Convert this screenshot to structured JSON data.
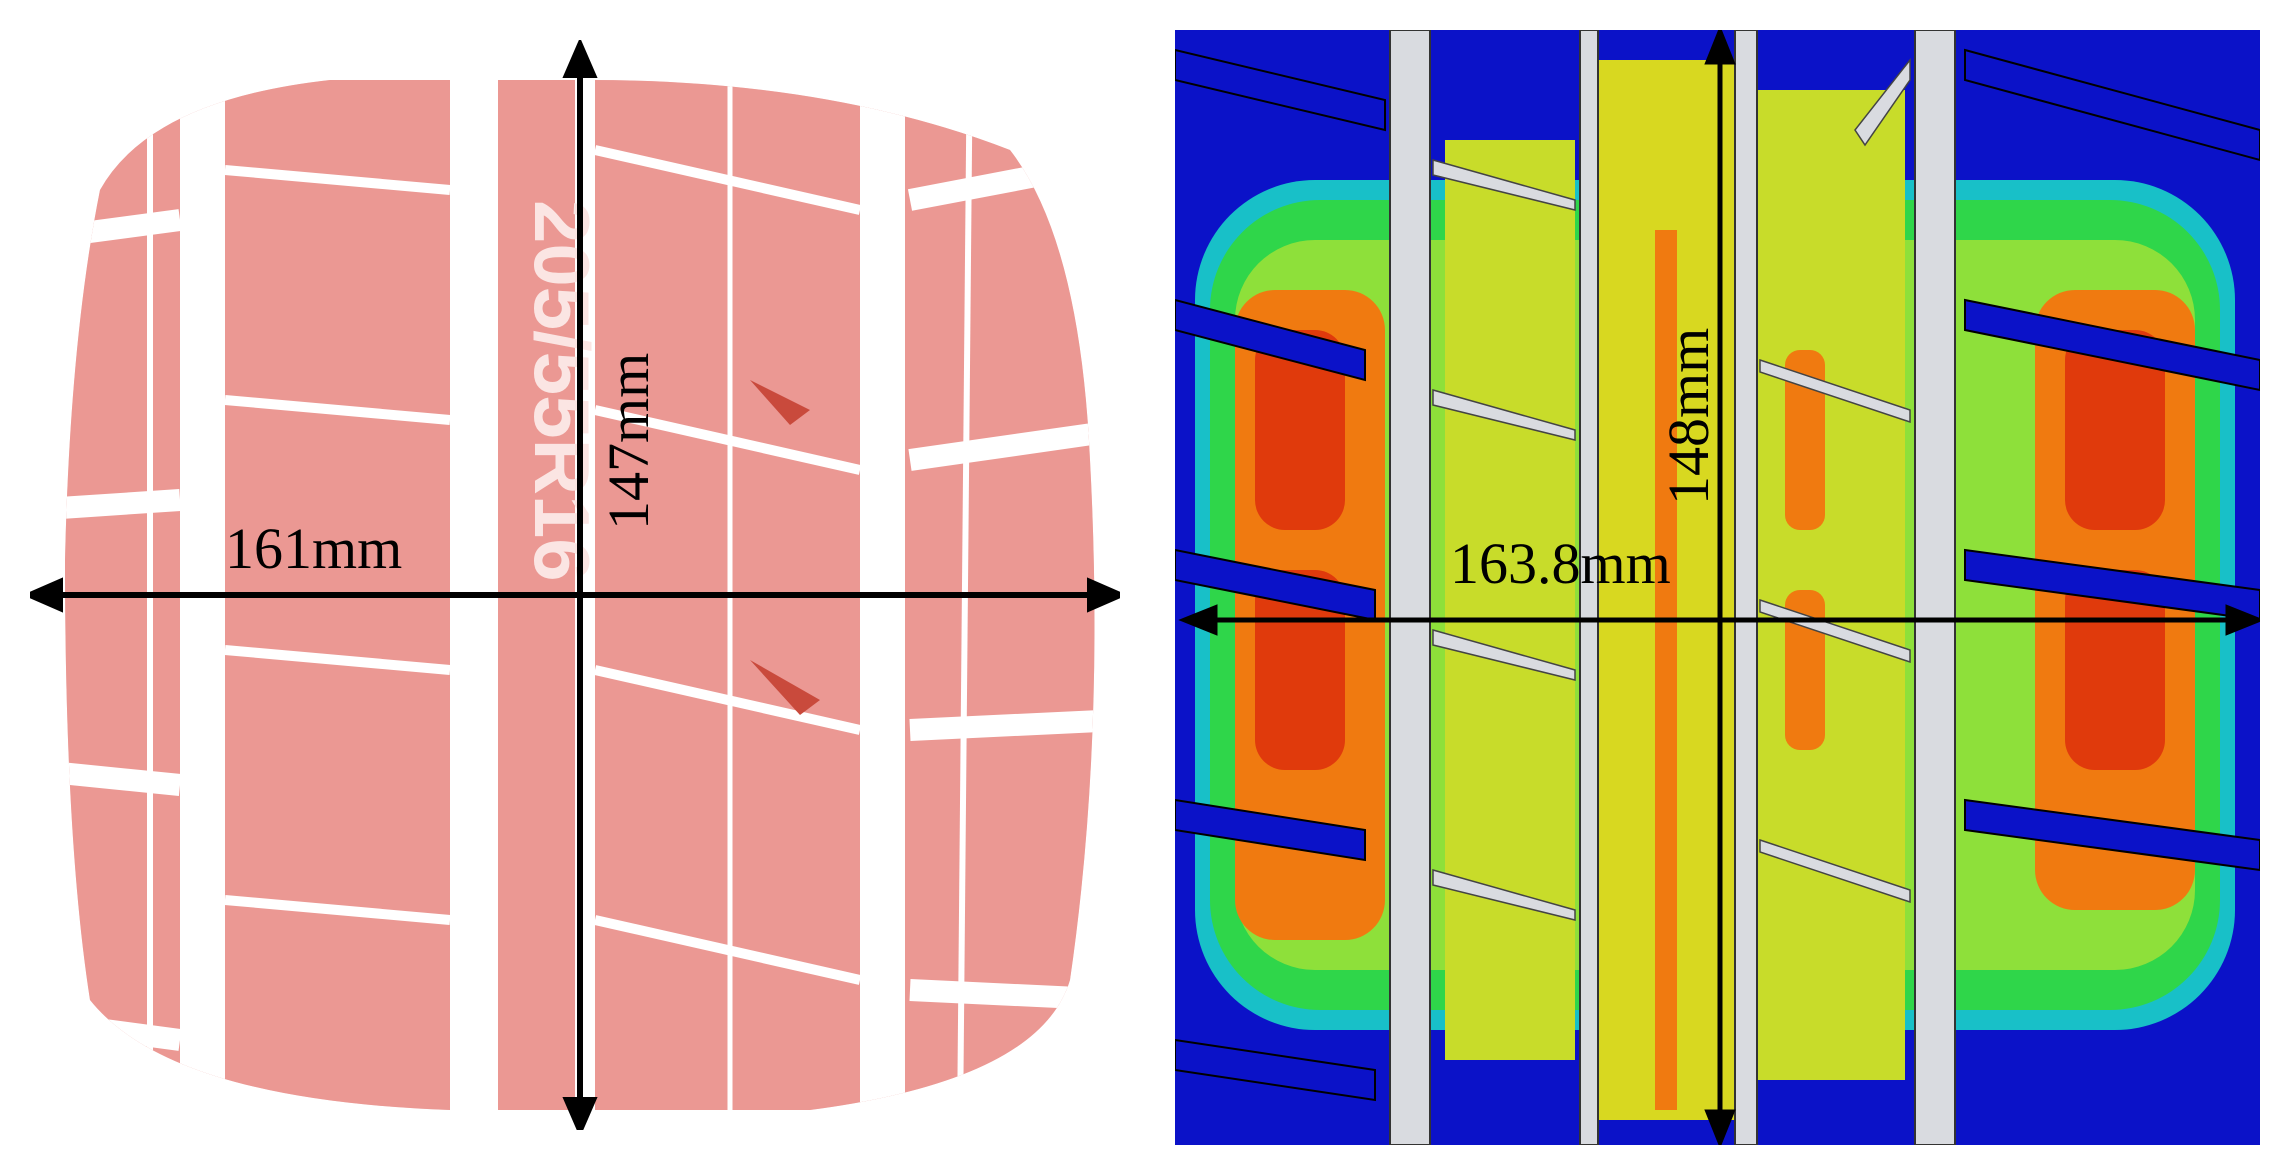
{
  "left": {
    "width_label": "161mm",
    "length_label": "147mm",
    "sidewall_text": "205/55R16"
  },
  "right": {
    "width_label": "163.8mm",
    "length_label": "148mm"
  },
  "colors": {
    "print_red": "#e88a84",
    "print_bg": "#ffffff",
    "fe_blue": "#0b12c8",
    "fe_green": "#2fd64a",
    "fe_yellow": "#d8d820",
    "fe_orange": "#f07a10",
    "fe_red": "#e03a0c",
    "groove_gray": "#d9dbe0"
  }
}
